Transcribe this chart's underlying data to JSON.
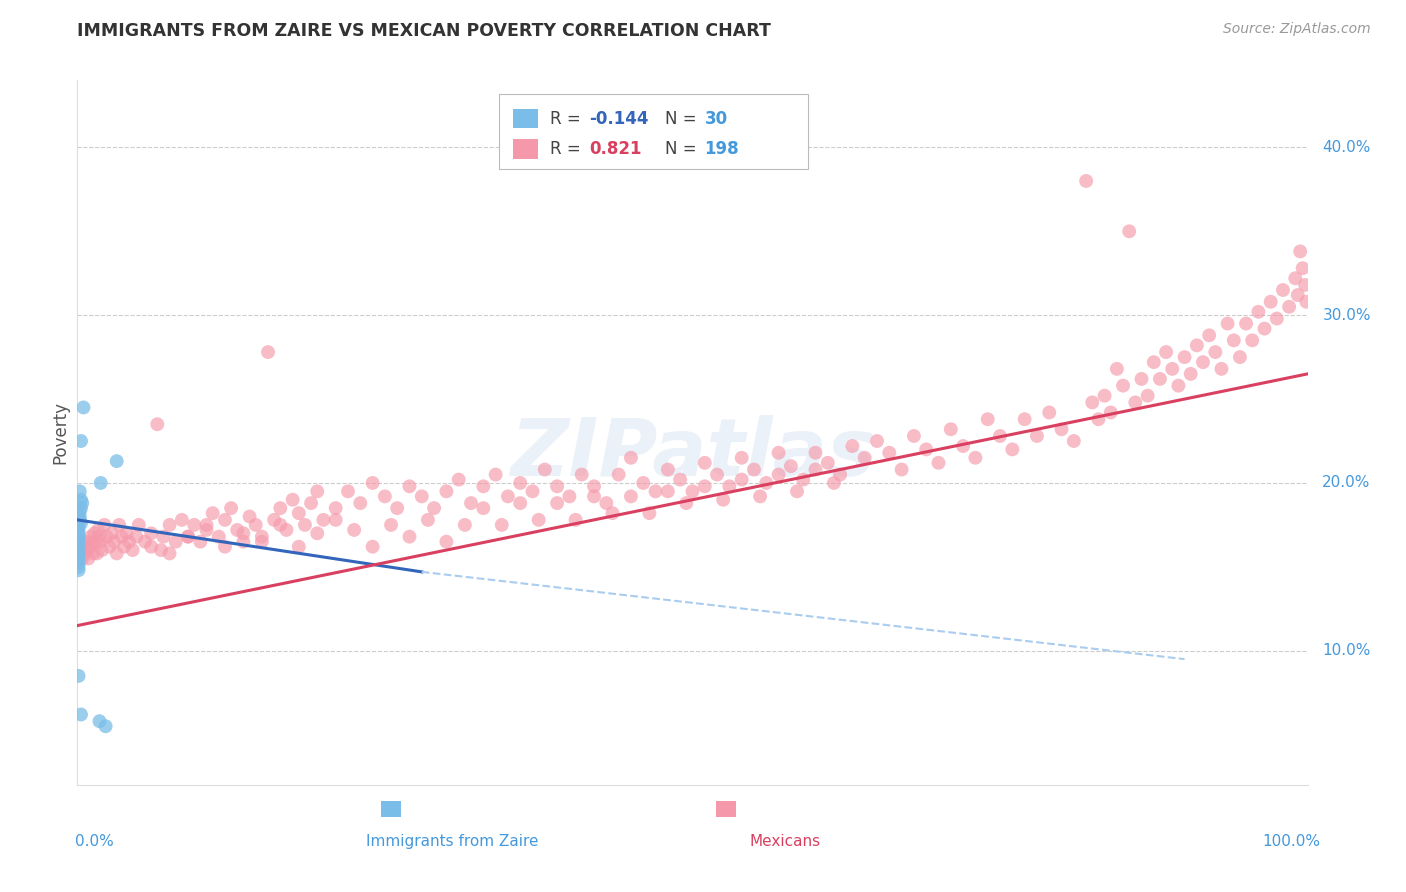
{
  "title": "IMMIGRANTS FROM ZAIRE VS MEXICAN POVERTY CORRELATION CHART",
  "source": "Source: ZipAtlas.com",
  "ylabel": "Poverty",
  "y_tick_labels": [
    "10.0%",
    "20.0%",
    "30.0%",
    "40.0%"
  ],
  "y_tick_values": [
    0.1,
    0.2,
    0.3,
    0.4
  ],
  "xlim": [
    0.0,
    1.0
  ],
  "ylim": [
    0.02,
    0.44
  ],
  "color_blue": "#7abde8",
  "color_pink": "#f599aa",
  "color_line_blue": "#3366bb",
  "color_line_pink": "#d94060",
  "color_line_dashed": "#aaccee",
  "color_axis_labels": "#4499dd",
  "color_title": "#333333",
  "color_grid": "#cccccc",
  "watermark": "ZIPatlas",
  "blue_trend": [
    0.0,
    0.178,
    0.28,
    0.147
  ],
  "blue_dashed": [
    0.28,
    0.147,
    0.9,
    0.095
  ],
  "pink_trend": [
    0.0,
    0.115,
    1.0,
    0.265
  ],
  "blue_points": [
    [
      0.005,
      0.245
    ],
    [
      0.003,
      0.225
    ],
    [
      0.019,
      0.2
    ],
    [
      0.032,
      0.213
    ],
    [
      0.002,
      0.195
    ],
    [
      0.003,
      0.19
    ],
    [
      0.004,
      0.188
    ],
    [
      0.003,
      0.185
    ],
    [
      0.002,
      0.183
    ],
    [
      0.002,
      0.18
    ],
    [
      0.002,
      0.178
    ],
    [
      0.003,
      0.176
    ],
    [
      0.001,
      0.174
    ],
    [
      0.001,
      0.172
    ],
    [
      0.001,
      0.17
    ],
    [
      0.001,
      0.168
    ],
    [
      0.001,
      0.167
    ],
    [
      0.001,
      0.165
    ],
    [
      0.001,
      0.163
    ],
    [
      0.001,
      0.16
    ],
    [
      0.001,
      0.158
    ],
    [
      0.001,
      0.156
    ],
    [
      0.001,
      0.154
    ],
    [
      0.001,
      0.152
    ],
    [
      0.001,
      0.15
    ],
    [
      0.001,
      0.148
    ],
    [
      0.001,
      0.085
    ],
    [
      0.003,
      0.062
    ],
    [
      0.018,
      0.058
    ],
    [
      0.023,
      0.055
    ]
  ],
  "pink_points": [
    [
      0.003,
      0.16
    ],
    [
      0.004,
      0.155
    ],
    [
      0.005,
      0.162
    ],
    [
      0.006,
      0.158
    ],
    [
      0.007,
      0.165
    ],
    [
      0.008,
      0.16
    ],
    [
      0.009,
      0.155
    ],
    [
      0.01,
      0.162
    ],
    [
      0.011,
      0.168
    ],
    [
      0.012,
      0.165
    ],
    [
      0.013,
      0.158
    ],
    [
      0.014,
      0.17
    ],
    [
      0.015,
      0.165
    ],
    [
      0.016,
      0.158
    ],
    [
      0.017,
      0.172
    ],
    [
      0.018,
      0.168
    ],
    [
      0.019,
      0.165
    ],
    [
      0.02,
      0.16
    ],
    [
      0.022,
      0.175
    ],
    [
      0.024,
      0.168
    ],
    [
      0.026,
      0.162
    ],
    [
      0.028,
      0.17
    ],
    [
      0.03,
      0.165
    ],
    [
      0.032,
      0.158
    ],
    [
      0.034,
      0.175
    ],
    [
      0.036,
      0.168
    ],
    [
      0.038,
      0.162
    ],
    [
      0.04,
      0.17
    ],
    [
      0.042,
      0.165
    ],
    [
      0.045,
      0.16
    ],
    [
      0.048,
      0.168
    ],
    [
      0.05,
      0.175
    ],
    [
      0.055,
      0.165
    ],
    [
      0.06,
      0.17
    ],
    [
      0.065,
      0.235
    ],
    [
      0.068,
      0.16
    ],
    [
      0.07,
      0.168
    ],
    [
      0.075,
      0.175
    ],
    [
      0.08,
      0.165
    ],
    [
      0.085,
      0.178
    ],
    [
      0.09,
      0.168
    ],
    [
      0.095,
      0.175
    ],
    [
      0.1,
      0.165
    ],
    [
      0.105,
      0.172
    ],
    [
      0.11,
      0.182
    ],
    [
      0.115,
      0.168
    ],
    [
      0.12,
      0.178
    ],
    [
      0.125,
      0.185
    ],
    [
      0.13,
      0.172
    ],
    [
      0.135,
      0.165
    ],
    [
      0.14,
      0.18
    ],
    [
      0.145,
      0.175
    ],
    [
      0.15,
      0.168
    ],
    [
      0.155,
      0.278
    ],
    [
      0.16,
      0.178
    ],
    [
      0.165,
      0.185
    ],
    [
      0.17,
      0.172
    ],
    [
      0.175,
      0.19
    ],
    [
      0.18,
      0.182
    ],
    [
      0.185,
      0.175
    ],
    [
      0.19,
      0.188
    ],
    [
      0.195,
      0.195
    ],
    [
      0.2,
      0.178
    ],
    [
      0.21,
      0.185
    ],
    [
      0.22,
      0.195
    ],
    [
      0.23,
      0.188
    ],
    [
      0.24,
      0.2
    ],
    [
      0.25,
      0.192
    ],
    [
      0.26,
      0.185
    ],
    [
      0.27,
      0.198
    ],
    [
      0.28,
      0.192
    ],
    [
      0.29,
      0.185
    ],
    [
      0.3,
      0.195
    ],
    [
      0.31,
      0.202
    ],
    [
      0.32,
      0.188
    ],
    [
      0.33,
      0.198
    ],
    [
      0.34,
      0.205
    ],
    [
      0.35,
      0.192
    ],
    [
      0.36,
      0.2
    ],
    [
      0.37,
      0.195
    ],
    [
      0.38,
      0.208
    ],
    [
      0.39,
      0.198
    ],
    [
      0.4,
      0.192
    ],
    [
      0.41,
      0.205
    ],
    [
      0.42,
      0.198
    ],
    [
      0.43,
      0.188
    ],
    [
      0.44,
      0.205
    ],
    [
      0.45,
      0.215
    ],
    [
      0.46,
      0.2
    ],
    [
      0.47,
      0.195
    ],
    [
      0.48,
      0.208
    ],
    [
      0.49,
      0.202
    ],
    [
      0.5,
      0.195
    ],
    [
      0.51,
      0.212
    ],
    [
      0.52,
      0.205
    ],
    [
      0.53,
      0.198
    ],
    [
      0.54,
      0.215
    ],
    [
      0.55,
      0.208
    ],
    [
      0.56,
      0.2
    ],
    [
      0.57,
      0.218
    ],
    [
      0.58,
      0.21
    ],
    [
      0.59,
      0.202
    ],
    [
      0.6,
      0.218
    ],
    [
      0.61,
      0.212
    ],
    [
      0.62,
      0.205
    ],
    [
      0.63,
      0.222
    ],
    [
      0.64,
      0.215
    ],
    [
      0.65,
      0.225
    ],
    [
      0.66,
      0.218
    ],
    [
      0.67,
      0.208
    ],
    [
      0.68,
      0.228
    ],
    [
      0.69,
      0.22
    ],
    [
      0.7,
      0.212
    ],
    [
      0.71,
      0.232
    ],
    [
      0.72,
      0.222
    ],
    [
      0.73,
      0.215
    ],
    [
      0.74,
      0.238
    ],
    [
      0.75,
      0.228
    ],
    [
      0.76,
      0.22
    ],
    [
      0.77,
      0.238
    ],
    [
      0.78,
      0.228
    ],
    [
      0.79,
      0.242
    ],
    [
      0.8,
      0.232
    ],
    [
      0.81,
      0.225
    ],
    [
      0.82,
      0.38
    ],
    [
      0.825,
      0.248
    ],
    [
      0.83,
      0.238
    ],
    [
      0.835,
      0.252
    ],
    [
      0.84,
      0.242
    ],
    [
      0.845,
      0.268
    ],
    [
      0.85,
      0.258
    ],
    [
      0.855,
      0.35
    ],
    [
      0.86,
      0.248
    ],
    [
      0.865,
      0.262
    ],
    [
      0.87,
      0.252
    ],
    [
      0.875,
      0.272
    ],
    [
      0.88,
      0.262
    ],
    [
      0.885,
      0.278
    ],
    [
      0.89,
      0.268
    ],
    [
      0.895,
      0.258
    ],
    [
      0.9,
      0.275
    ],
    [
      0.905,
      0.265
    ],
    [
      0.91,
      0.282
    ],
    [
      0.915,
      0.272
    ],
    [
      0.92,
      0.288
    ],
    [
      0.925,
      0.278
    ],
    [
      0.93,
      0.268
    ],
    [
      0.935,
      0.295
    ],
    [
      0.94,
      0.285
    ],
    [
      0.945,
      0.275
    ],
    [
      0.95,
      0.295
    ],
    [
      0.955,
      0.285
    ],
    [
      0.96,
      0.302
    ],
    [
      0.965,
      0.292
    ],
    [
      0.97,
      0.308
    ],
    [
      0.975,
      0.298
    ],
    [
      0.98,
      0.315
    ],
    [
      0.985,
      0.305
    ],
    [
      0.99,
      0.322
    ],
    [
      0.992,
      0.312
    ],
    [
      0.994,
      0.338
    ],
    [
      0.996,
      0.328
    ],
    [
      0.998,
      0.318
    ],
    [
      0.999,
      0.308
    ],
    [
      0.06,
      0.162
    ],
    [
      0.075,
      0.158
    ],
    [
      0.09,
      0.168
    ],
    [
      0.105,
      0.175
    ],
    [
      0.12,
      0.162
    ],
    [
      0.135,
      0.17
    ],
    [
      0.15,
      0.165
    ],
    [
      0.165,
      0.175
    ],
    [
      0.18,
      0.162
    ],
    [
      0.195,
      0.17
    ],
    [
      0.21,
      0.178
    ],
    [
      0.225,
      0.172
    ],
    [
      0.24,
      0.162
    ],
    [
      0.255,
      0.175
    ],
    [
      0.27,
      0.168
    ],
    [
      0.285,
      0.178
    ],
    [
      0.3,
      0.165
    ],
    [
      0.315,
      0.175
    ],
    [
      0.33,
      0.185
    ],
    [
      0.345,
      0.175
    ],
    [
      0.36,
      0.188
    ],
    [
      0.375,
      0.178
    ],
    [
      0.39,
      0.188
    ],
    [
      0.405,
      0.178
    ],
    [
      0.42,
      0.192
    ],
    [
      0.435,
      0.182
    ],
    [
      0.45,
      0.192
    ],
    [
      0.465,
      0.182
    ],
    [
      0.48,
      0.195
    ],
    [
      0.495,
      0.188
    ],
    [
      0.51,
      0.198
    ],
    [
      0.525,
      0.19
    ],
    [
      0.54,
      0.202
    ],
    [
      0.555,
      0.192
    ],
    [
      0.57,
      0.205
    ],
    [
      0.585,
      0.195
    ],
    [
      0.6,
      0.208
    ],
    [
      0.615,
      0.2
    ]
  ]
}
